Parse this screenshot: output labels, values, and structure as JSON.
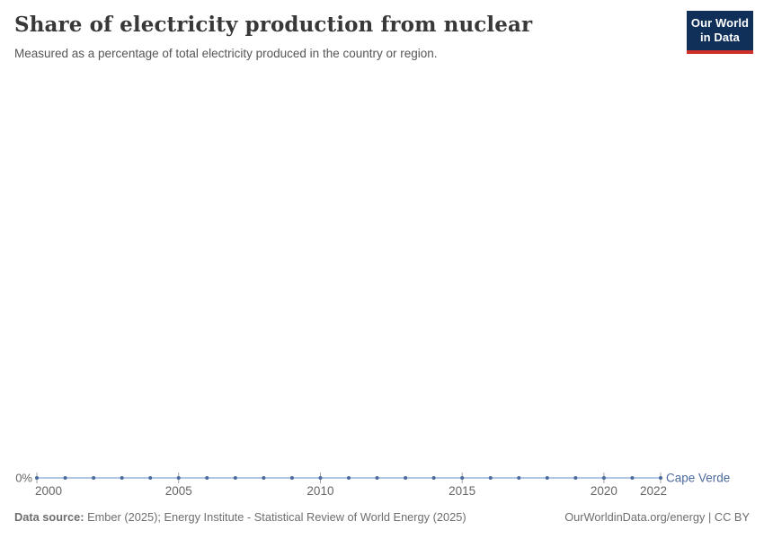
{
  "header": {
    "title": "Share of electricity production from nuclear",
    "subtitle": "Measured as a percentage of total electricity produced in the country or region.",
    "logo": {
      "line1": "Our World",
      "line2": "in Data",
      "bg_color": "#10305a",
      "accent_color": "#cf3129"
    }
  },
  "chart_data": {
    "type": "line",
    "title": "Share of electricity production from nuclear",
    "x": [
      2000,
      2001,
      2002,
      2003,
      2004,
      2005,
      2006,
      2007,
      2008,
      2009,
      2010,
      2011,
      2012,
      2013,
      2014,
      2015,
      2016,
      2017,
      2018,
      2019,
      2020,
      2021,
      2022
    ],
    "series": [
      {
        "name": "Cape Verde",
        "values": [
          0,
          0,
          0,
          0,
          0,
          0,
          0,
          0,
          0,
          0,
          0,
          0,
          0,
          0,
          0,
          0,
          0,
          0,
          0,
          0,
          0,
          0,
          0
        ],
        "line_color": "#a6c1de",
        "marker_color": "#4c6a9c",
        "label_color": "#4c6a9c"
      }
    ],
    "xlabel": "",
    "ylabel": "",
    "x_ticks": [
      2000,
      2005,
      2010,
      2015,
      2020,
      2022
    ],
    "y_ticks": [
      {
        "value": 0,
        "label": "0%"
      }
    ],
    "xlim": [
      2000,
      2022
    ],
    "ylim": [
      0,
      100
    ],
    "grid": false,
    "legend_position": "end-of-line",
    "axis_text_color": "#666666",
    "tick_color": "#a3a3a3"
  },
  "footer": {
    "source_label": "Data source:",
    "source_text": "Ember (2025); Energy Institute - Statistical Review of World Energy (2025)",
    "right_text": "OurWorldinData.org/energy | CC BY"
  }
}
